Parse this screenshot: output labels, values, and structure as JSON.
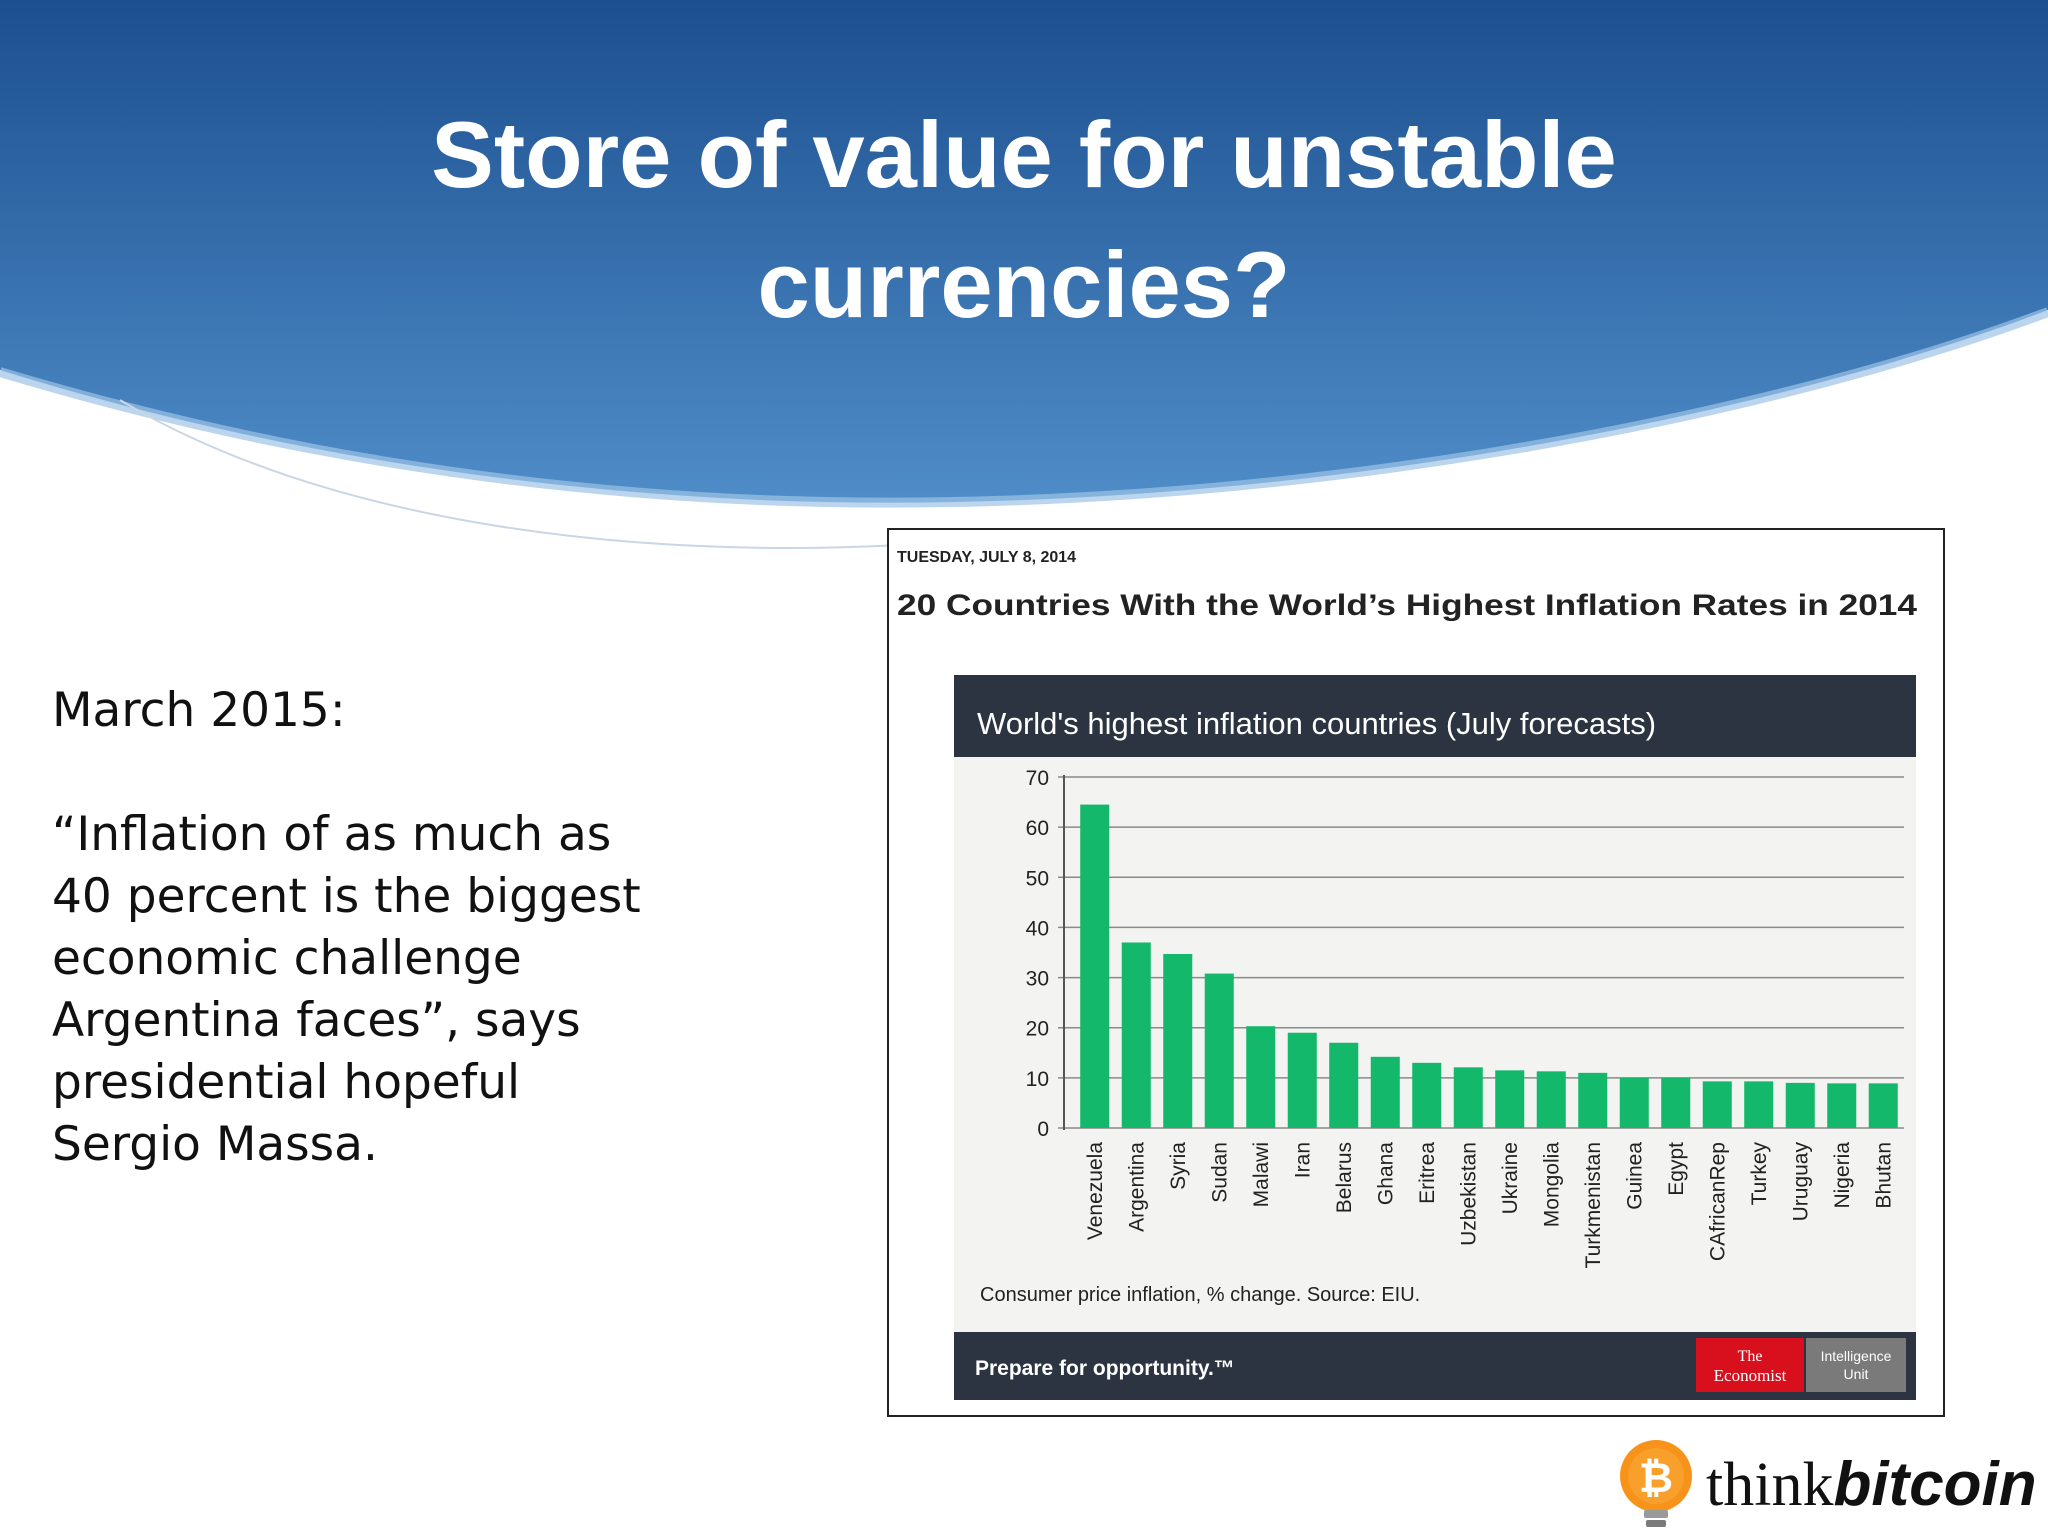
{
  "slide": {
    "title_line1": "Store of value for unstable",
    "title_line2": "currencies?",
    "date_line": "March 2015:",
    "quote_lines": [
      "“Inflation of as much as",
      "40 percent is the biggest",
      "economic challenge",
      "Argentina faces”, says",
      "presidential hopeful",
      "Sergio Massa."
    ]
  },
  "article": {
    "dateline": "TUESDAY, JULY 8, 2014",
    "headline": "20 Countries With the World’s Highest Inflation Rates in 2014",
    "footer_tagline": "Prepare for opportunity.™",
    "logo_economist": [
      "The",
      "Economist"
    ],
    "logo_intelligence": [
      "Intelligence",
      "Unit"
    ]
  },
  "branding": {
    "think": "think",
    "bitcoin": "bitcoin",
    "bitcoin_symbol": "₿"
  },
  "colors": {
    "header_dark": "#1c4f8f",
    "header_light": "#4f8dc8",
    "bar": "#14b86b",
    "chart_band": "#2b3440",
    "economist_red": "#d8101e",
    "eiu_grey": "#7a7a7a",
    "bitcoin_orange": "#f7931a"
  },
  "chart_data": {
    "type": "bar",
    "title": "World's highest inflation countries (July forecasts)",
    "note": "Consumer price inflation, % change. Source: EIU.",
    "categories": [
      "Venezuela",
      "Argentina",
      "Syria",
      "Sudan",
      "Malawi",
      "Iran",
      "Belarus",
      "Ghana",
      "Eritrea",
      "Uzbekistan",
      "Ukraine",
      "Mongolia",
      "Turkmenistan",
      "Guinea",
      "Egypt",
      "CAfricanRep",
      "Turkey",
      "Uruguay",
      "Nigeria",
      "Bhutan"
    ],
    "values": [
      64.5,
      37,
      34.7,
      30.8,
      20.3,
      19,
      17,
      14.2,
      13,
      12.1,
      11.5,
      11.3,
      11,
      10,
      10,
      9.3,
      9.3,
      9,
      8.9,
      8.9
    ],
    "ylim": [
      0,
      70
    ],
    "yticks": [
      "0",
      "10",
      "20",
      "30",
      "40",
      "50",
      "60",
      "70"
    ],
    "grid": true,
    "xlabel": "",
    "ylabel": ""
  }
}
